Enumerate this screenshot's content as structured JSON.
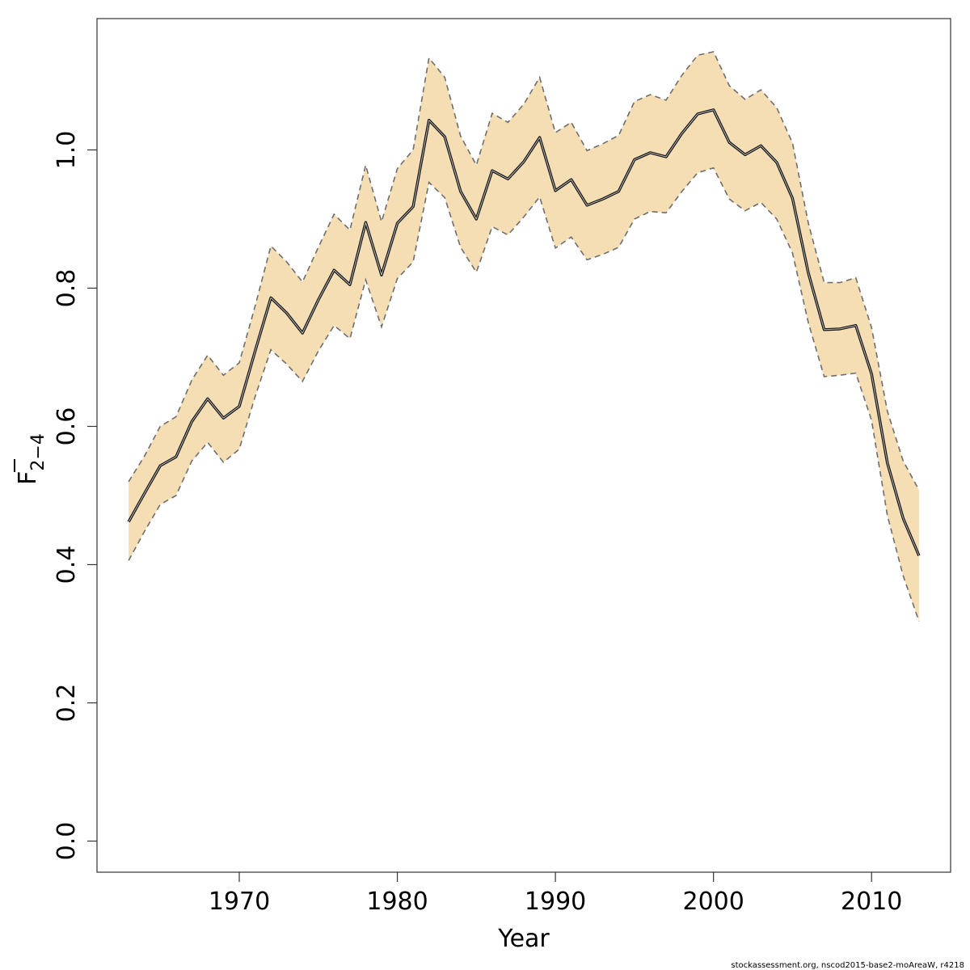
{
  "chart_data": {
    "type": "line",
    "xlabel": "Year",
    "ylabel_main": "F",
    "ylabel_subscript": "2−4",
    "xlim": [
      1961,
      2015
    ],
    "ylim": [
      -0.045,
      1.19
    ],
    "xticks": [
      1970,
      1980,
      1990,
      2000,
      2010
    ],
    "yticks": [
      0.0,
      0.2,
      0.4,
      0.6,
      0.8,
      1.0
    ],
    "ytick_labels": [
      "0.0",
      "0.2",
      "0.4",
      "0.6",
      "0.8",
      "1.0"
    ],
    "grid": false,
    "x": [
      1963,
      1964,
      1965,
      1966,
      1967,
      1968,
      1969,
      1970,
      1971,
      1972,
      1973,
      1974,
      1975,
      1976,
      1977,
      1978,
      1979,
      1980,
      1981,
      1982,
      1983,
      1984,
      1985,
      1986,
      1987,
      1988,
      1989,
      1990,
      1991,
      1992,
      1993,
      1994,
      1995,
      1996,
      1997,
      1998,
      1999,
      2000,
      2001,
      2002,
      2003,
      2004,
      2005,
      2006,
      2007,
      2008,
      2009,
      2010,
      2011,
      2012,
      2013
    ],
    "series": [
      {
        "role": "estimate",
        "values": [
          0.462,
          0.503,
          0.543,
          0.556,
          0.607,
          0.64,
          0.612,
          0.629,
          0.709,
          0.786,
          0.764,
          0.735,
          0.783,
          0.826,
          0.805,
          0.895,
          0.819,
          0.894,
          0.918,
          1.043,
          1.019,
          0.94,
          0.9,
          0.97,
          0.958,
          0.983,
          1.018,
          0.941,
          0.957,
          0.92,
          0.929,
          0.94,
          0.986,
          0.996,
          0.99,
          1.024,
          1.052,
          1.058,
          1.011,
          0.993,
          1.006,
          0.982,
          0.93,
          0.822,
          0.74,
          0.741,
          0.746,
          0.676,
          0.547,
          0.467,
          0.413
        ]
      },
      {
        "role": "upper",
        "values": [
          0.52,
          0.557,
          0.6,
          0.614,
          0.667,
          0.703,
          0.674,
          0.692,
          0.774,
          0.861,
          0.838,
          0.809,
          0.859,
          0.907,
          0.884,
          0.978,
          0.896,
          0.973,
          1.0,
          1.133,
          1.105,
          1.02,
          0.978,
          1.053,
          1.04,
          1.066,
          1.105,
          1.025,
          1.04,
          0.999,
          1.009,
          1.021,
          1.07,
          1.08,
          1.072,
          1.108,
          1.137,
          1.142,
          1.093,
          1.073,
          1.087,
          1.061,
          1.01,
          0.894,
          0.808,
          0.808,
          0.815,
          0.743,
          0.622,
          0.55,
          0.508
        ]
      },
      {
        "role": "lower",
        "values": [
          0.406,
          0.448,
          0.487,
          0.5,
          0.55,
          0.577,
          0.548,
          0.567,
          0.643,
          0.711,
          0.69,
          0.665,
          0.709,
          0.746,
          0.727,
          0.812,
          0.744,
          0.814,
          0.838,
          0.953,
          0.931,
          0.859,
          0.823,
          0.889,
          0.877,
          0.903,
          0.932,
          0.858,
          0.874,
          0.841,
          0.849,
          0.859,
          0.9,
          0.911,
          0.909,
          0.94,
          0.967,
          0.974,
          0.929,
          0.912,
          0.924,
          0.9,
          0.851,
          0.75,
          0.672,
          0.674,
          0.677,
          0.609,
          0.471,
          0.384,
          0.318
        ]
      }
    ]
  },
  "colors": {
    "band_fill": "#f5deb3",
    "band_edge": "#6e6e6e",
    "line_outline": "#111111",
    "line_center": "#bdbdbd",
    "axis": "#333333"
  },
  "footer": {
    "credit": "stockassessment.org, nscod2015-base2-moAreaW, r4218"
  }
}
